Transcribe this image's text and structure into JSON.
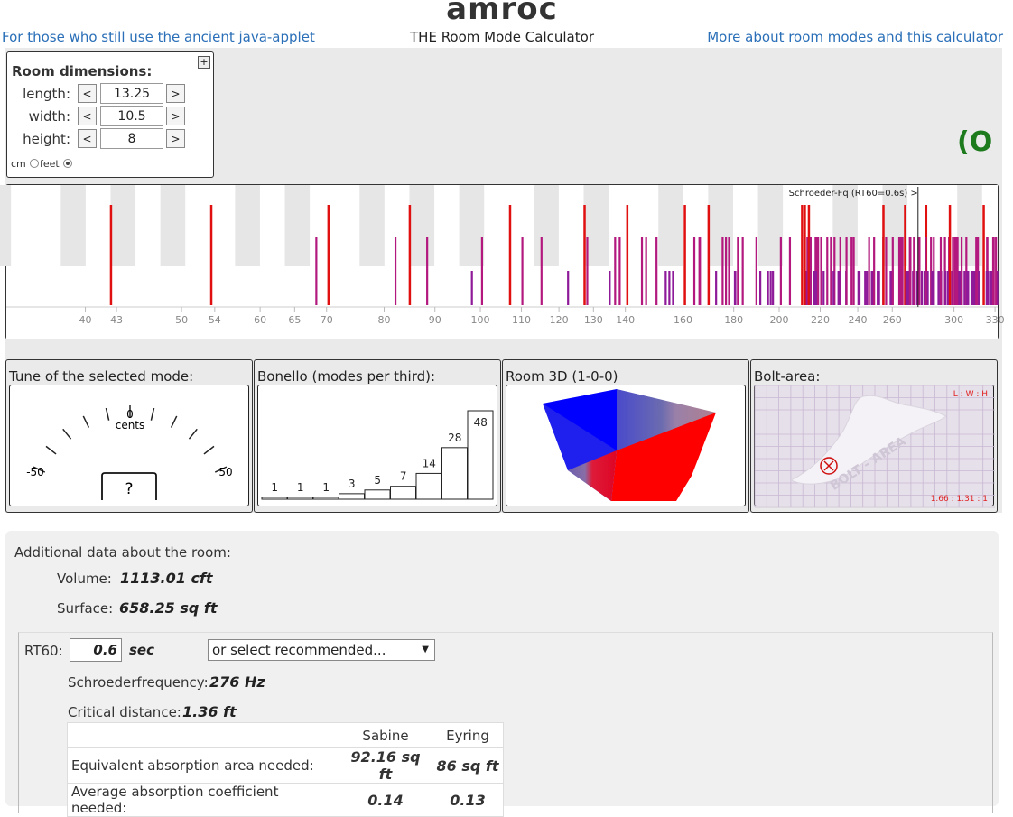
{
  "header": {
    "brand": "amroc",
    "left_link": "For those who still use the ancient java-applet",
    "subtitle": "THE Room Mode Calculator",
    "right_link": "More about room modes and this calculator"
  },
  "dimensions": {
    "title": "Room dimensions:",
    "rows": [
      {
        "label": "length:",
        "value": "13.25"
      },
      {
        "label": "width:",
        "value": "10.5"
      },
      {
        "label": "height:",
        "value": "8"
      }
    ],
    "dec_label": "<",
    "inc_label": ">",
    "unit_cm": "cm",
    "unit_feet": "feet",
    "selected_unit": "feet",
    "expand_icon": "plus-icon"
  },
  "spinner_glyph": "(O",
  "mode_chart": {
    "schroeder_label": "Schroeder-Fq (RT60=0.6s) >",
    "tick_labels": [
      "40",
      "43",
      "50",
      "54",
      "60",
      "65",
      "70",
      "80",
      "90",
      "100",
      "110",
      "120",
      "130",
      "140",
      "160",
      "180",
      "200",
      "220",
      "240",
      "260",
      "300",
      "330"
    ],
    "colors": {
      "axial": "#e01010",
      "tangential": "#b2187e",
      "oblique": "#8e1a9a"
    }
  },
  "tune": {
    "title": "Tune of the selected mode:",
    "zero_label": "0",
    "cents_label": "cents",
    "min_label": "-50",
    "max_label": "50",
    "value_display": "?"
  },
  "bonello": {
    "title": "Bonello (modes per third):",
    "values": [
      1,
      1,
      1,
      3,
      5,
      7,
      14,
      28,
      48
    ]
  },
  "room3d": {
    "title": "Room 3D (1-0-0)",
    "colors": {
      "positive": "#ff0000",
      "negative": "#0000ff"
    }
  },
  "bolt": {
    "title": "Bolt-area:",
    "ratio_header": "L : W : H",
    "ratio_value": "1.66 : 1.31 : 1",
    "watermark": "BOLT - AREA"
  },
  "additional": {
    "title": "Additional data about the room:",
    "volume_label": "Volume:",
    "volume_value": "1113.01 cft",
    "surface_label": "Surface:",
    "surface_value": "658.25 sq ft",
    "rt60_label": "RT60:",
    "rt60_value": "0.6",
    "rt60_unit": "sec",
    "rt60_select": "or select recommended...",
    "schroeder_label": "Schroederfrequency:",
    "schroeder_value": "276 Hz",
    "critical_label": "Critical distance:",
    "critical_value": "1.36 ft",
    "table": {
      "headers": [
        "",
        "Sabine",
        "Eyring"
      ],
      "rows": [
        {
          "label": "Equivalent absorption area needed:",
          "sabine": "92.16 sq ft",
          "eyring": "86 sq ft"
        },
        {
          "label": "Average absorption coefficient needed:",
          "sabine": "0.14",
          "eyring": "0.13"
        }
      ]
    }
  }
}
